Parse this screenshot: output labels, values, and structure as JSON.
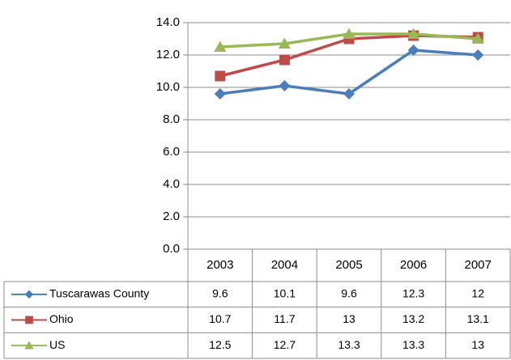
{
  "chart_data": {
    "type": "line",
    "categories": [
      "2003",
      "2004",
      "2005",
      "2006",
      "2007"
    ],
    "series": [
      {
        "name": "Tuscarawas County",
        "color": "#4a7ebb",
        "marker": "diamond",
        "values": [
          9.6,
          10.1,
          9.6,
          12.3,
          12
        ]
      },
      {
        "name": "Ohio",
        "color": "#be4b48",
        "marker": "square",
        "values": [
          10.7,
          11.7,
          13,
          13.2,
          13.1
        ]
      },
      {
        "name": "US",
        "color": "#98b954",
        "marker": "triangle",
        "values": [
          12.5,
          12.7,
          13.3,
          13.3,
          13
        ]
      }
    ],
    "ylim": [
      0,
      14
    ],
    "yticks": [
      {
        "value": 0,
        "label": "0.0"
      },
      {
        "value": 2,
        "label": "2.0"
      },
      {
        "value": 4,
        "label": "4.0"
      },
      {
        "value": 6,
        "label": "6.0"
      },
      {
        "value": 8,
        "label": "8.0"
      },
      {
        "value": 10,
        "label": "10.0"
      },
      {
        "value": 12,
        "label": "12.0"
      },
      {
        "value": 14,
        "label": "14.0"
      }
    ],
    "grid": true
  }
}
